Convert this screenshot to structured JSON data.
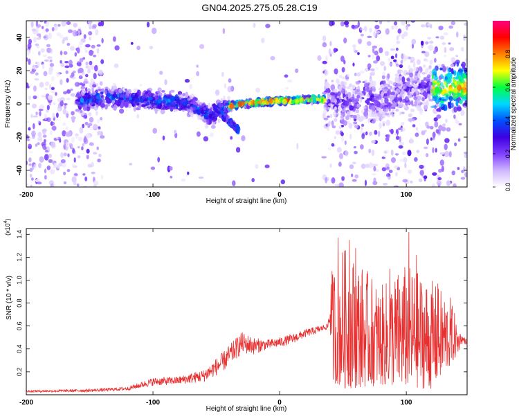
{
  "title": "GN04.2025.275.05.28.C19",
  "chart_data": [
    {
      "type": "heatmap",
      "xlabel": "Height of straight line (km)",
      "ylabel": "Frequency (Hz)",
      "xlim": [
        -200,
        148
      ],
      "ylim": [
        -50,
        50
      ],
      "x_ticks": [
        -200,
        -100,
        0,
        100
      ],
      "y_ticks": [
        -40,
        -20,
        0,
        20,
        40
      ],
      "colorbar": {
        "label": "Normalized spectral amplitude",
        "range": [
          0.0,
          1.0
        ],
        "ticks": [
          "0.0",
          "0.2",
          "0.4",
          "0.6",
          "0.8"
        ],
        "colors": [
          "#ffffff",
          "#cfb6ff",
          "#8040ff",
          "#3d00e0",
          "#0050ff",
          "#00d8ff",
          "#00ff40",
          "#ffff00",
          "#ff8000",
          "#ff0000",
          "#ff0080"
        ]
      },
      "ridge": {
        "x": [
          -155,
          -140,
          -120,
          -100,
          -80,
          -65,
          -55,
          -45,
          -30,
          -15,
          0,
          15,
          28,
          40,
          55,
          70,
          90,
          105,
          118,
          130,
          140,
          148
        ],
        "frequency": [
          2,
          4,
          3,
          2,
          1,
          -2,
          -8,
          -2,
          0,
          1,
          2,
          2,
          3,
          2,
          0,
          2,
          5,
          10,
          10,
          9,
          10,
          10
        ]
      }
    },
    {
      "type": "line",
      "xlabel": "Height of straight line (km)",
      "ylabel": "SNR (10 * v/v)",
      "y_multiplier": "(x10",
      "y_multiplier_exp": "4",
      "y_multiplier_close": ")",
      "xlim": [
        -200,
        148
      ],
      "ylim": [
        0,
        1.45
      ],
      "x_ticks": [
        -200,
        -100,
        0,
        100
      ],
      "y_ticks": [
        "0.2",
        "0.4",
        "0.6",
        "0.8",
        "1.0",
        "1.2",
        "1.4"
      ],
      "color": "#e83030",
      "envelope": {
        "x": [
          -200,
          -150,
          -120,
          -100,
          -80,
          -60,
          -45,
          -30,
          -20,
          -10,
          0,
          10,
          20,
          30,
          38,
          41,
          50,
          60,
          80,
          100,
          120,
          135,
          142,
          148
        ],
        "base": [
          0.01,
          0.01,
          0.02,
          0.04,
          0.05,
          0.05,
          0.1,
          0.25,
          0.27,
          0.35,
          0.37,
          0.4,
          0.46,
          0.5,
          0.55,
          0.12,
          0.05,
          0.06,
          0.08,
          0.06,
          0.05,
          0.25,
          0.38,
          0.42
        ],
        "top": [
          0.04,
          0.05,
          0.07,
          0.15,
          0.16,
          0.22,
          0.37,
          0.55,
          0.5,
          0.48,
          0.5,
          0.53,
          0.57,
          0.6,
          0.62,
          1.1,
          1.3,
          1.2,
          0.95,
          1.15,
          1.0,
          0.85,
          0.55,
          0.48
        ]
      },
      "peaks": [
        {
          "x": 46,
          "y": 1.37
        },
        {
          "x": 55,
          "y": 1.35
        },
        {
          "x": 60,
          "y": 1.28
        },
        {
          "x": 87,
          "y": 1.1
        },
        {
          "x": 102,
          "y": 1.42
        },
        {
          "x": 108,
          "y": 1.22
        },
        {
          "x": 125,
          "y": 0.97
        }
      ]
    }
  ]
}
